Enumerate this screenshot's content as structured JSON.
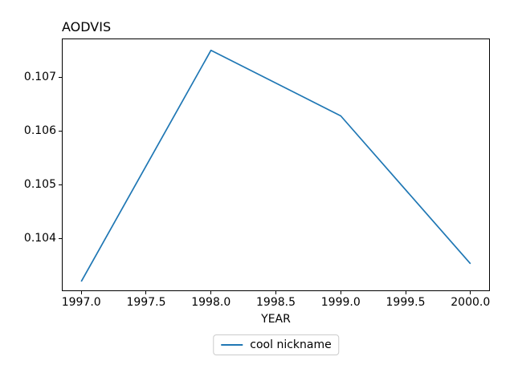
{
  "chart_data": {
    "type": "line",
    "title": "AODVIS",
    "xlabel": "YEAR",
    "ylabel": "",
    "x": [
      1997,
      1998,
      1999,
      2000
    ],
    "series": [
      {
        "name": "cool nickname",
        "values": [
          0.1032,
          0.1075,
          0.10628,
          0.10353
        ],
        "color": "#1f77b4"
      }
    ],
    "xlim": [
      1996.85,
      2000.15
    ],
    "ylim": [
      0.10302,
      0.10772
    ],
    "xtick_values": [
      1997.0,
      1997.5,
      1998.0,
      1998.5,
      1999.0,
      1999.5,
      2000.0
    ],
    "xtick_labels": [
      "1997.0",
      "1997.5",
      "1998.0",
      "1998.5",
      "1999.0",
      "1999.5",
      "2000.0"
    ],
    "ytick_values": [
      0.104,
      0.105,
      0.106,
      0.107
    ],
    "ytick_labels": [
      "0.104",
      "0.105",
      "0.106",
      "0.107"
    ],
    "grid": false,
    "legend": {
      "position": "bottom-center-outside",
      "entries": [
        "cool nickname"
      ]
    }
  }
}
